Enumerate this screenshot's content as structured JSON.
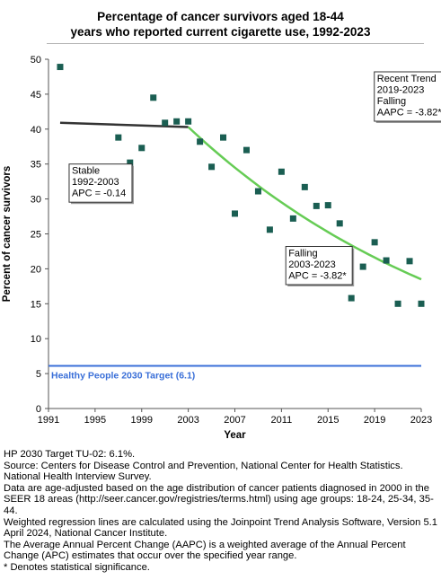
{
  "title_line1": "Percentage of cancer survivors aged 18-44",
  "title_line2": "years who reported current cigarette use, 1992-2023",
  "chart_data": {
    "type": "scatter",
    "xlabel": "Year",
    "ylabel": "Percent of cancer survivors",
    "xlim": [
      1991,
      2023
    ],
    "ylim": [
      0,
      50
    ],
    "x_ticks": [
      "1991",
      "1995",
      "1999",
      "2003",
      "2007",
      "2011",
      "2015",
      "2019",
      "2023"
    ],
    "y_ticks": [
      "0",
      "5",
      "10",
      "15",
      "20",
      "25",
      "30",
      "35",
      "40",
      "45",
      "50"
    ],
    "grid": false,
    "points": [
      {
        "x": 1992,
        "y": 48.9
      },
      {
        "x": 1997,
        "y": 38.8
      },
      {
        "x": 1998,
        "y": 35.2
      },
      {
        "x": 1999,
        "y": 37.3
      },
      {
        "x": 2000,
        "y": 44.5
      },
      {
        "x": 2001,
        "y": 40.9
      },
      {
        "x": 2002,
        "y": 41.1
      },
      {
        "x": 2003,
        "y": 41.1
      },
      {
        "x": 2004,
        "y": 38.2
      },
      {
        "x": 2005,
        "y": 34.6
      },
      {
        "x": 2006,
        "y": 38.8
      },
      {
        "x": 2007,
        "y": 27.9
      },
      {
        "x": 2008,
        "y": 37.0
      },
      {
        "x": 2009,
        "y": 31.1
      },
      {
        "x": 2010,
        "y": 25.6
      },
      {
        "x": 2011,
        "y": 33.9
      },
      {
        "x": 2012,
        "y": 27.2
      },
      {
        "x": 2013,
        "y": 31.7
      },
      {
        "x": 2014,
        "y": 29.0
      },
      {
        "x": 2015,
        "y": 29.1
      },
      {
        "x": 2016,
        "y": 26.5
      },
      {
        "x": 2017,
        "y": 15.8
      },
      {
        "x": 2018,
        "y": 20.3
      },
      {
        "x": 2019,
        "y": 23.8
      },
      {
        "x": 2020,
        "y": 21.2
      },
      {
        "x": 2021,
        "y": 15.0
      },
      {
        "x": 2022,
        "y": 21.1
      },
      {
        "x": 2023,
        "y": 15.0
      }
    ],
    "trend_segments": [
      {
        "label": "Stable 1992-2003",
        "color": "#333333",
        "x": [
          1992,
          2003
        ],
        "y": [
          40.9,
          40.3
        ]
      },
      {
        "label": "Falling 2003-2023",
        "color": "#66cc55",
        "x": [
          2003,
          2023
        ],
        "y": [
          40.3,
          18.5
        ]
      }
    ],
    "target": {
      "label": "Healthy People 2030 Target (6.1)",
      "value": 6.1,
      "color": "#3a6fd8"
    },
    "marker_color": "#1a5e52",
    "annotations": [
      {
        "lines": [
          "Stable",
          "1992-2003",
          "APC = -0.14"
        ]
      },
      {
        "lines": [
          "Falling",
          "2003-2023",
          "APC = -3.82*"
        ]
      },
      {
        "lines": [
          "Recent Trend",
          "2019-2023",
          "Falling",
          "AAPC = -3.82*"
        ]
      }
    ]
  },
  "footnotes": [
    "HP 2030 Target TU-02: 6.1%.",
    "Source: Centers for Disease Control and Prevention, National Center for Health Statistics. National Health Interview Survey.",
    "Data are age-adjusted based on the age distribution of cancer patients diagnosed in 2000 in the SEER 18 areas (http://seer.cancer.gov/registries/terms.html) using age groups: 18-24, 25-34, 35-44.",
    "Weighted regression lines are calculated using the Joinpoint Trend Analysis Software, Version 5.1 April 2024, National Cancer Institute.",
    "The Average Annual Percent Change (AAPC) is a weighted average of the Annual Percent Change (APC) estimates that occur over the specified year range.",
    "* Denotes statistical significance."
  ]
}
